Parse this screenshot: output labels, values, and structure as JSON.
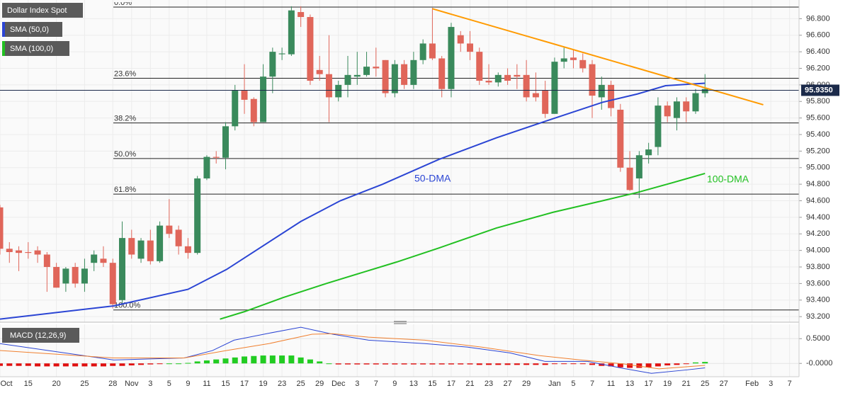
{
  "chart_data": [
    {
      "type": "candlestick",
      "title": "Dollar Index Spot",
      "categories": [
        "Oct",
        null,
        null,
        "15",
        null,
        null,
        "20",
        null,
        null,
        "25",
        null,
        null,
        "28",
        null,
        "Nov",
        null,
        "3",
        null,
        "5",
        null,
        "9",
        null,
        "11",
        null,
        "15",
        null,
        "17",
        null,
        "19",
        null,
        "23",
        null,
        "25",
        null,
        "29",
        null,
        "Dec",
        null,
        "3",
        null,
        "7",
        null,
        "9",
        null,
        "13",
        null,
        "15",
        null,
        "17",
        null,
        "21",
        null,
        "23",
        null,
        "27",
        null,
        "29",
        null,
        null,
        "Jan",
        null,
        "5",
        null,
        "7",
        null,
        "11",
        null,
        "13",
        null,
        "17",
        null,
        "19",
        null,
        "21",
        null,
        "25",
        null,
        "27",
        null,
        null,
        "Feb",
        null,
        "3",
        null,
        "7"
      ],
      "open": [
        94.52,
        94.02,
        94.0,
        93.98,
        94.0,
        93.95,
        93.8,
        93.6,
        93.8,
        93.6,
        93.85,
        93.9,
        93.85,
        93.4,
        94.15,
        93.9,
        94.12,
        93.87,
        94.3,
        94.25,
        94.05,
        93.97,
        94.87,
        95.13,
        95.12,
        95.5,
        95.93,
        95.83,
        95.55,
        96.1,
        96.37,
        96.37,
        96.88,
        96.82,
        96.18,
        96.13,
        95.85,
        96.0,
        96.1,
        96.12,
        96.22,
        96.3,
        95.9,
        96.25,
        96.0,
        96.3,
        96.5,
        96.32,
        95.95,
        96.6,
        96.5,
        96.4,
        96.05,
        96.03,
        96.12,
        96.12,
        96.12,
        95.9,
        95.93,
        95.65,
        96.28,
        96.33,
        96.3,
        96.25,
        95.85,
        96.0,
        95.7,
        95.0,
        94.87,
        95.15,
        95.25,
        95.75,
        95.6,
        95.8,
        95.68,
        95.9,
        null,
        null,
        null,
        null,
        null,
        null,
        null,
        null,
        null
      ],
      "high": [
        94.55,
        94.1,
        94.05,
        94.1,
        94.05,
        93.98,
        93.85,
        93.8,
        93.85,
        93.9,
        94.0,
        94.05,
        93.9,
        94.35,
        94.25,
        94.15,
        94.25,
        94.35,
        94.62,
        94.3,
        94.15,
        94.9,
        95.15,
        95.2,
        95.55,
        96.0,
        96.25,
        95.85,
        96.25,
        96.45,
        96.45,
        96.95,
        96.95,
        96.85,
        96.35,
        96.6,
        96.05,
        96.35,
        96.4,
        96.4,
        96.45,
        96.3,
        96.3,
        96.3,
        96.4,
        96.55,
        96.93,
        96.35,
        96.75,
        96.65,
        96.65,
        96.45,
        96.25,
        96.15,
        96.2,
        96.25,
        96.3,
        96.15,
        96.05,
        96.33,
        96.45,
        96.42,
        96.38,
        96.3,
        96.1,
        96.05,
        95.77,
        95.2,
        95.2,
        95.3,
        95.85,
        95.8,
        95.85,
        95.85,
        95.95,
        96.13,
        null,
        null,
        null,
        null,
        null,
        null,
        null,
        null,
        null
      ],
      "low": [
        93.95,
        93.85,
        93.75,
        93.9,
        93.85,
        93.5,
        93.55,
        93.5,
        93.55,
        93.5,
        93.75,
        93.8,
        93.3,
        93.35,
        93.9,
        93.85,
        93.83,
        93.85,
        94.15,
        93.95,
        93.9,
        93.95,
        94.85,
        95.05,
        94.98,
        95.45,
        95.65,
        95.5,
        95.55,
        95.9,
        96.3,
        96.35,
        96.7,
        96.0,
        96.05,
        95.55,
        95.8,
        95.85,
        96.0,
        96.1,
        96.1,
        95.85,
        95.85,
        95.95,
        95.95,
        96.25,
        96.3,
        95.85,
        95.85,
        96.4,
        96.3,
        96.0,
        96.0,
        95.98,
        96.0,
        95.95,
        95.8,
        95.8,
        95.6,
        95.65,
        96.2,
        96.2,
        96.15,
        95.6,
        95.7,
        95.62,
        94.95,
        94.72,
        94.63,
        95.05,
        95.15,
        95.55,
        95.45,
        95.55,
        95.65,
        95.85,
        null,
        null,
        null,
        null,
        null,
        null,
        null,
        null,
        null
      ],
      "close": [
        94.02,
        93.98,
        93.97,
        93.97,
        93.95,
        93.8,
        93.55,
        93.78,
        93.6,
        93.78,
        93.95,
        93.85,
        93.35,
        94.15,
        93.95,
        94.12,
        93.87,
        94.3,
        94.2,
        94.05,
        93.97,
        94.87,
        95.13,
        95.12,
        95.5,
        95.93,
        95.82,
        95.55,
        96.1,
        96.4,
        96.38,
        96.9,
        96.82,
        96.05,
        96.13,
        95.85,
        96.0,
        96.12,
        96.12,
        96.22,
        96.2,
        95.9,
        96.25,
        96.0,
        96.3,
        96.5,
        96.32,
        95.95,
        96.7,
        96.5,
        96.4,
        96.05,
        96.03,
        96.12,
        96.05,
        96.1,
        95.85,
        95.85,
        95.65,
        96.28,
        96.32,
        96.3,
        96.2,
        95.87,
        96.0,
        95.72,
        95.0,
        94.73,
        95.15,
        95.22,
        95.75,
        95.62,
        95.8,
        95.68,
        95.9,
        95.95,
        null,
        null,
        null,
        null,
        null,
        null,
        null,
        null,
        null
      ],
      "up_color": "#3a8a5c",
      "down_color": "#e0665a",
      "series": [
        {
          "name": "SMA (50,0)",
          "label": "50-DMA",
          "color": "#2b45d4",
          "x": [
            0,
            12.1,
            20,
            24.1,
            32,
            36.2,
            40.7,
            46.7,
            52.8,
            58,
            64.1,
            67.8,
            70.8,
            75
          ],
          "values": [
            93.17,
            93.33,
            93.53,
            93.77,
            94.35,
            94.6,
            94.8,
            95.1,
            95.36,
            95.56,
            95.79,
            95.89,
            95.99,
            96.02
          ]
        },
        {
          "name": "SMA (100,0)",
          "label": "100-DMA",
          "color": "#22c022",
          "x": [
            23.4,
            26,
            30.1,
            34.7,
            42.2,
            46.7,
            52.8,
            58.8,
            64.1,
            67.8,
            71.6,
            75
          ],
          "values": [
            93.17,
            93.26,
            93.43,
            93.6,
            93.86,
            94.03,
            94.27,
            94.46,
            94.6,
            94.7,
            94.82,
            94.93
          ]
        }
      ],
      "trendline": {
        "color": "#ff9a00",
        "x": [
          46,
          81.2
        ],
        "values": [
          96.92,
          95.76
        ]
      },
      "levels": [
        {
          "name": "0.0%",
          "value": 96.94
        },
        {
          "name": "23.6%",
          "value": 96.08
        },
        {
          "name": "38.2%",
          "value": 95.54
        },
        {
          "name": "50.0%",
          "value": 95.11
        },
        {
          "name": "61.8%",
          "value": 94.68
        },
        {
          "name": "100.0%",
          "value": 93.28
        }
      ],
      "last_price": {
        "value": 95.935,
        "label": "95.9350"
      },
      "ylim": [
        93.15,
        97.0
      ],
      "yticks": [
        {
          "value": 93.2,
          "label": "93.200"
        },
        {
          "value": 93.4,
          "label": "93.400"
        },
        {
          "value": 93.6,
          "label": "93.600"
        },
        {
          "value": 93.8,
          "label": "93.800"
        },
        {
          "value": 94.0,
          "label": "94.000"
        },
        {
          "value": 94.2,
          "label": "94.200"
        },
        {
          "value": 94.4,
          "label": "94.400"
        },
        {
          "value": 94.6,
          "label": "94.600"
        },
        {
          "value": 94.8,
          "label": "94.800"
        },
        {
          "value": 95.0,
          "label": "95.000"
        },
        {
          "value": 95.2,
          "label": "95.200"
        },
        {
          "value": 95.4,
          "label": "95.400"
        },
        {
          "value": 95.6,
          "label": "95.600"
        },
        {
          "value": 95.8,
          "label": "95.800"
        },
        {
          "value": 96.0,
          "label": "96.000"
        },
        {
          "value": 96.2,
          "label": "96.200"
        },
        {
          "value": 96.4,
          "label": "96.400"
        },
        {
          "value": 96.6,
          "label": "96.600"
        },
        {
          "value": 96.8,
          "label": "96.800"
        }
      ],
      "grid": true
    },
    {
      "type": "macd",
      "title": "MACD (12,26,9)",
      "histogram": {
        "pos_color": "#22cc22",
        "neg_color": "#e01010",
        "values": [
          -0.05,
          -0.05,
          -0.05,
          -0.05,
          -0.06,
          -0.06,
          -0.06,
          -0.06,
          -0.06,
          -0.06,
          -0.06,
          -0.06,
          -0.05,
          -0.05,
          -0.04,
          -0.03,
          -0.02,
          -0.01,
          0,
          0,
          0.01,
          0.04,
          0.06,
          0.08,
          0.1,
          0.12,
          0.14,
          0.15,
          0.16,
          0.16,
          0.16,
          0.16,
          0.12,
          0.08,
          0.04,
          0,
          -0.02,
          -0.02,
          -0.02,
          -0.02,
          -0.02,
          -0.02,
          -0.02,
          -0.02,
          -0.02,
          -0.02,
          -0.02,
          -0.02,
          -0.02,
          -0.02,
          -0.02,
          -0.03,
          -0.03,
          -0.03,
          -0.03,
          -0.03,
          -0.03,
          -0.03,
          -0.03,
          -0.01,
          -0.01,
          -0.01,
          -0.01,
          -0.03,
          -0.05,
          -0.06,
          -0.08,
          -0.09,
          -0.09,
          -0.08,
          -0.06,
          -0.04,
          -0.03,
          -0.01,
          0.02,
          0.03
        ]
      },
      "series": [
        {
          "color": "#2b45d4",
          "x": [
            0,
            12.1,
            19.6,
            22.6,
            24.9,
            28.6,
            32,
            35.4,
            39.2,
            45.2,
            49.7,
            54.3,
            58,
            62.5,
            66.3,
            69.3,
            73.1,
            75
          ],
          "values": [
            0.4,
            0.07,
            0.11,
            0.26,
            0.47,
            0.61,
            0.73,
            0.59,
            0.47,
            0.4,
            0.33,
            0.21,
            0.04,
            0.04,
            -0.1,
            -0.2,
            -0.13,
            -0.09
          ]
        },
        {
          "color": "#f08030",
          "x": [
            0,
            12.1,
            19.6,
            24.1,
            28.6,
            33.2,
            35.4,
            39.2,
            45.2,
            51.2,
            57.3,
            61.8,
            66.3,
            70.1,
            75
          ],
          "values": [
            0.26,
            0.11,
            0.11,
            0.26,
            0.4,
            0.59,
            0.6,
            0.53,
            0.47,
            0.33,
            0.16,
            0.07,
            -0.01,
            -0.11,
            -0.04
          ]
        }
      ],
      "ylim": [
        -0.24,
        0.79
      ],
      "yticks": [
        {
          "value": 0.5,
          "label": "0.5000"
        },
        {
          "value": 0,
          "label": "-0.0000"
        }
      ],
      "grid": true
    }
  ]
}
